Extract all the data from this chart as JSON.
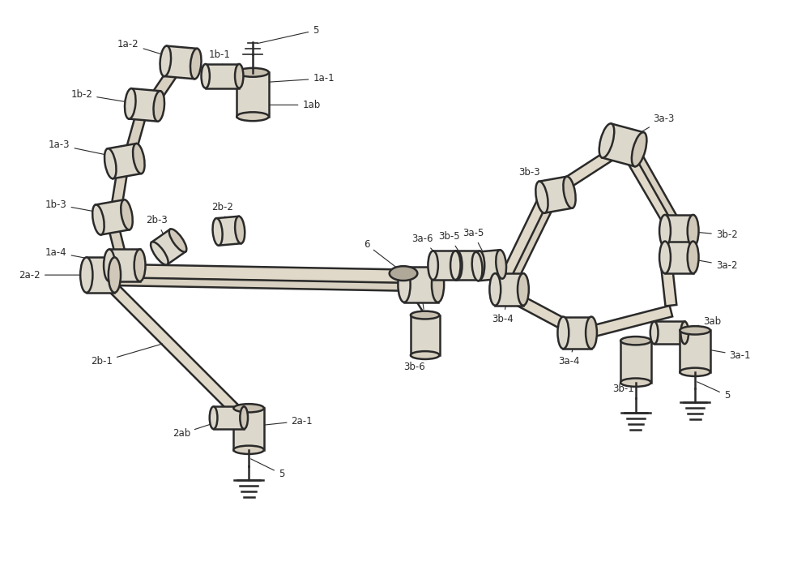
{
  "bg_color": "#f5f0e8",
  "line_color": "#2a2a2a",
  "line_width": 1.8,
  "fill_color": "#e8e0d0",
  "fill_color2": "#d8d0c0",
  "annotation_fontsize": 8.5,
  "annotation_color": "#2a2a2a",
  "figsize": [
    10.0,
    6.98
  ],
  "dpi": 100,
  "xlim": [
    0,
    10
  ],
  "ylim": [
    0,
    7
  ]
}
